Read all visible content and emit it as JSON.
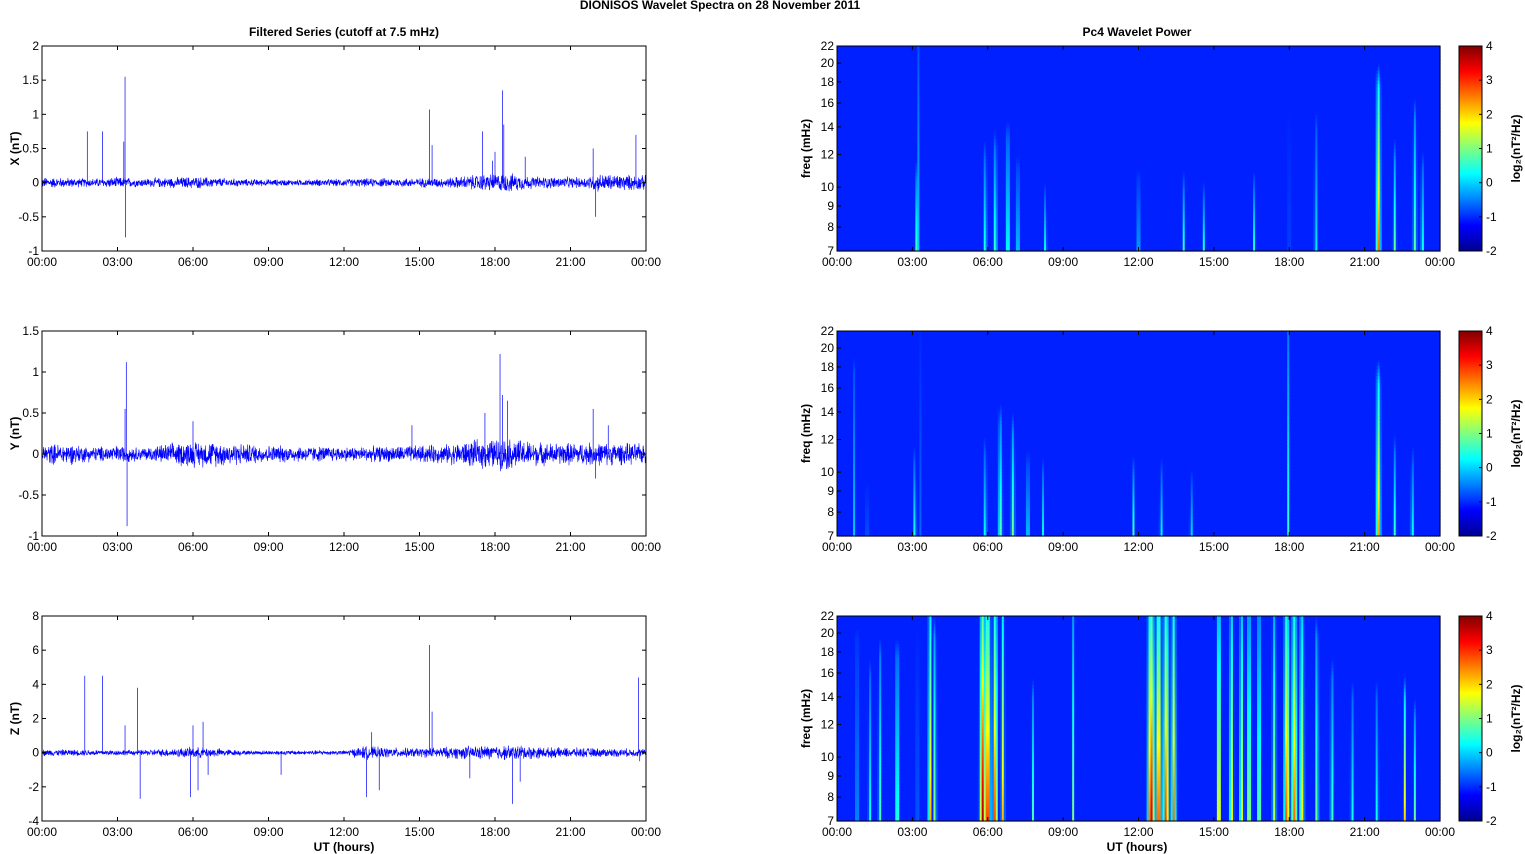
{
  "figure": {
    "title": "DIONISOS Wavelet Spectra on 28 November  2011",
    "left_title": "Filtered Series (cutoff at 7.5 mHz)",
    "right_title": "Pc4 Wavelet Power",
    "xlabel": "UT (hours)"
  },
  "colors": {
    "trace": "#0000ff",
    "axis": "#000000",
    "background": "#ffffff"
  },
  "chart_data": [
    {
      "type": "line",
      "ylabel": "X (nT)",
      "ylim": [
        -1,
        2
      ],
      "yticks": [
        "-1",
        "-0.5",
        "0",
        "0.5",
        "1",
        "1.5",
        "2"
      ],
      "xticks": [
        "00:00",
        "03:00",
        "06:00",
        "09:00",
        "12:00",
        "15:00",
        "18:00",
        "21:00",
        "00:00"
      ],
      "xlim_hours": [
        0,
        24
      ],
      "noise": [
        [
          0,
          0.09
        ],
        [
          2,
          0.07
        ],
        [
          3,
          0.09
        ],
        [
          4,
          0.07
        ],
        [
          6,
          0.1
        ],
        [
          8,
          0.06
        ],
        [
          10,
          0.05
        ],
        [
          13,
          0.07
        ],
        [
          16,
          0.08
        ],
        [
          17.5,
          0.14
        ],
        [
          18.5,
          0.16
        ],
        [
          19.5,
          0.1
        ],
        [
          21.5,
          0.09
        ],
        [
          22,
          0.15
        ],
        [
          24,
          0.12
        ]
      ],
      "spikes": [
        [
          1.8,
          0.75
        ],
        [
          2.4,
          0.75
        ],
        [
          3.3,
          1.55
        ],
        [
          3.32,
          -0.8
        ],
        [
          3.25,
          0.6
        ],
        [
          15.4,
          1.07
        ],
        [
          15.5,
          0.55
        ],
        [
          17.5,
          0.75
        ],
        [
          17.9,
          0.32
        ],
        [
          18.0,
          0.45
        ],
        [
          18.3,
          1.35
        ],
        [
          18.35,
          0.85
        ],
        [
          19.2,
          0.38
        ],
        [
          21.9,
          0.5
        ],
        [
          22.0,
          -0.5
        ],
        [
          23.6,
          0.7
        ]
      ]
    },
    {
      "type": "line",
      "ylabel": "Y (nT)",
      "ylim": [
        -1,
        1.5
      ],
      "yticks": [
        "-1",
        "-0.5",
        "0",
        "0.5",
        "1",
        "1.5"
      ],
      "xticks": [
        "00:00",
        "03:00",
        "06:00",
        "09:00",
        "12:00",
        "15:00",
        "18:00",
        "21:00",
        "00:00"
      ],
      "xlim_hours": [
        0,
        24
      ],
      "noise": [
        [
          0,
          0.13
        ],
        [
          1,
          0.15
        ],
        [
          2,
          0.1
        ],
        [
          3,
          0.12
        ],
        [
          4,
          0.09
        ],
        [
          5.8,
          0.18
        ],
        [
          7,
          0.17
        ],
        [
          9,
          0.12
        ],
        [
          12,
          0.1
        ],
        [
          14,
          0.11
        ],
        [
          16,
          0.13
        ],
        [
          17.5,
          0.2
        ],
        [
          18.5,
          0.22
        ],
        [
          20,
          0.15
        ],
        [
          22,
          0.16
        ],
        [
          24,
          0.14
        ]
      ],
      "spikes": [
        [
          3.35,
          1.12
        ],
        [
          3.38,
          -0.88
        ],
        [
          3.3,
          0.55
        ],
        [
          6.0,
          0.4
        ],
        [
          14.7,
          0.35
        ],
        [
          17.6,
          0.5
        ],
        [
          18.2,
          1.22
        ],
        [
          18.3,
          0.72
        ],
        [
          18.5,
          0.65
        ],
        [
          21.9,
          0.55
        ],
        [
          22.0,
          -0.3
        ],
        [
          22.5,
          0.35
        ]
      ]
    },
    {
      "type": "line",
      "ylabel": "Z (nT)",
      "ylim": [
        -4,
        8
      ],
      "yticks": [
        "-4",
        "-2",
        "0",
        "2",
        "4",
        "6",
        "8"
      ],
      "xticks": [
        "00:00",
        "03:00",
        "06:00",
        "09:00",
        "12:00",
        "15:00",
        "18:00",
        "21:00",
        "00:00"
      ],
      "xlim_hours": [
        0,
        24
      ],
      "noise": [
        [
          0,
          0.22
        ],
        [
          2,
          0.2
        ],
        [
          4,
          0.18
        ],
        [
          5.8,
          0.35
        ],
        [
          6.5,
          0.35
        ],
        [
          8,
          0.15
        ],
        [
          12,
          0.15
        ],
        [
          12.8,
          0.45
        ],
        [
          13.5,
          0.35
        ],
        [
          15,
          0.3
        ],
        [
          17,
          0.45
        ],
        [
          19,
          0.5
        ],
        [
          20,
          0.35
        ],
        [
          22,
          0.3
        ],
        [
          24,
          0.25
        ]
      ],
      "spikes": [
        [
          1.7,
          4.5
        ],
        [
          2.4,
          4.5
        ],
        [
          3.3,
          1.6
        ],
        [
          3.8,
          3.8
        ],
        [
          3.9,
          -2.7
        ],
        [
          5.9,
          -2.6
        ],
        [
          6.0,
          1.6
        ],
        [
          6.2,
          -2.2
        ],
        [
          6.4,
          1.8
        ],
        [
          6.6,
          -1.3
        ],
        [
          9.5,
          -1.3
        ],
        [
          12.9,
          -2.6
        ],
        [
          13.1,
          1.2
        ],
        [
          13.4,
          -2.2
        ],
        [
          15.4,
          6.3
        ],
        [
          15.5,
          2.4
        ],
        [
          17.0,
          -1.5
        ],
        [
          18.7,
          -3.0
        ],
        [
          19.0,
          -1.7
        ],
        [
          23.7,
          4.4
        ],
        [
          23.75,
          -0.5
        ]
      ]
    },
    {
      "type": "heatmap",
      "ylabel": "freq (mHz)",
      "ytick_values": [
        7,
        8,
        9,
        10,
        12,
        14,
        16,
        18,
        20,
        22
      ],
      "yticks": [
        "7",
        "8",
        "9",
        "10",
        "12",
        "14",
        "16",
        "18",
        "20",
        "22"
      ],
      "ylim_mhz": [
        7,
        22
      ],
      "xticks": [
        "00:00",
        "03:00",
        "06:00",
        "09:00",
        "12:00",
        "15:00",
        "18:00",
        "21:00",
        "00:00"
      ],
      "xlim_hours": [
        0,
        24
      ],
      "colorbar_label": "log₂(nT²/Hz)",
      "colorbar_ticks": [
        "-2",
        "-1",
        "0",
        "1",
        "2",
        "3",
        "4"
      ],
      "clim": [
        -2,
        4
      ],
      "events": [
        [
          3.25,
          -0.2,
          0.02,
          1.0
        ],
        [
          3.15,
          0.3,
          0.05,
          0.35
        ],
        [
          5.9,
          0.2,
          0.06,
          0.45
        ],
        [
          6.3,
          0.3,
          0.07,
          0.5
        ],
        [
          6.8,
          0.4,
          0.07,
          0.55
        ],
        [
          7.2,
          0.0,
          0.06,
          0.4
        ],
        [
          8.3,
          0.1,
          0.05,
          0.25
        ],
        [
          12.0,
          0.0,
          0.05,
          0.35
        ],
        [
          13.8,
          0.1,
          0.05,
          0.3
        ],
        [
          14.6,
          0.0,
          0.05,
          0.25
        ],
        [
          16.6,
          0.0,
          0.05,
          0.3
        ],
        [
          18.0,
          0.6,
          0.03,
          1.0
        ],
        [
          19.05,
          0.8,
          0.04,
          0.6
        ],
        [
          21.55,
          2.5,
          0.08,
          0.8
        ],
        [
          22.2,
          0.5,
          0.06,
          0.45
        ],
        [
          23.0,
          0.4,
          0.07,
          0.65
        ],
        [
          23.3,
          0.1,
          0.06,
          0.4
        ]
      ]
    },
    {
      "type": "heatmap",
      "ylabel": "freq (mHz)",
      "ytick_values": [
        7,
        8,
        9,
        10,
        12,
        14,
        16,
        18,
        20,
        22
      ],
      "yticks": [
        "7",
        "8",
        "9",
        "10",
        "12",
        "14",
        "16",
        "18",
        "20",
        "22"
      ],
      "ylim_mhz": [
        7,
        22
      ],
      "xticks": [
        "00:00",
        "03:00",
        "06:00",
        "09:00",
        "12:00",
        "15:00",
        "18:00",
        "21:00",
        "00:00"
      ],
      "xlim_hours": [
        0,
        24
      ],
      "colorbar_label": "log₂(nT²/Hz)",
      "colorbar_ticks": [
        "-2",
        "-1",
        "0",
        "1",
        "2",
        "3",
        "4"
      ],
      "clim": [
        -2,
        4
      ],
      "events": [
        [
          0.7,
          -0.2,
          0.04,
          0.8
        ],
        [
          1.2,
          -0.5,
          0.04,
          0.3
        ],
        [
          3.3,
          0.0,
          0.02,
          1.0
        ],
        [
          3.1,
          0.2,
          0.05,
          0.35
        ],
        [
          5.9,
          0.0,
          0.06,
          0.4
        ],
        [
          6.5,
          0.5,
          0.08,
          0.55
        ],
        [
          7.0,
          0.6,
          0.07,
          0.5
        ],
        [
          7.6,
          0.0,
          0.06,
          0.35
        ],
        [
          8.2,
          -0.2,
          0.05,
          0.3
        ],
        [
          11.8,
          0.2,
          0.05,
          0.3
        ],
        [
          12.9,
          0.0,
          0.05,
          0.3
        ],
        [
          14.1,
          -0.2,
          0.05,
          0.25
        ],
        [
          17.95,
          0.3,
          0.03,
          1.0
        ],
        [
          21.55,
          2.2,
          0.08,
          0.75
        ],
        [
          22.2,
          0.2,
          0.06,
          0.4
        ],
        [
          22.9,
          0.0,
          0.06,
          0.35
        ]
      ]
    },
    {
      "type": "heatmap",
      "ylabel": "freq (mHz)",
      "ytick_values": [
        7,
        8,
        9,
        10,
        12,
        14,
        16,
        18,
        20,
        22
      ],
      "yticks": [
        "7",
        "8",
        "9",
        "10",
        "12",
        "14",
        "16",
        "18",
        "20",
        "22"
      ],
      "ylim_mhz": [
        7,
        22
      ],
      "xticks": [
        "00:00",
        "03:00",
        "06:00",
        "09:00",
        "12:00",
        "15:00",
        "18:00",
        "21:00",
        "00:00"
      ],
      "xlim_hours": [
        0,
        24
      ],
      "colorbar_label": "log₂(nT²/Hz)",
      "colorbar_ticks": [
        "-2",
        "-1",
        "0",
        "1",
        "2",
        "3",
        "4"
      ],
      "clim": [
        -2,
        4
      ],
      "events": [
        [
          0.8,
          0.5,
          0.04,
          0.9
        ],
        [
          1.3,
          0.2,
          0.05,
          0.7
        ],
        [
          1.7,
          0.6,
          0.05,
          0.8
        ],
        [
          2.4,
          1.0,
          0.06,
          0.8
        ],
        [
          3.2,
          1.5,
          0.03,
          1.0
        ],
        [
          3.7,
          2.5,
          0.06,
          1.0
        ],
        [
          3.9,
          1.2,
          0.05,
          0.9
        ],
        [
          5.8,
          3.8,
          0.1,
          1.0
        ],
        [
          6.0,
          3.5,
          0.1,
          1.0
        ],
        [
          6.3,
          3.0,
          0.08,
          1.0
        ],
        [
          6.6,
          2.0,
          0.06,
          1.0
        ],
        [
          7.8,
          0.3,
          0.05,
          0.6
        ],
        [
          9.4,
          0.6,
          0.03,
          1.0
        ],
        [
          12.5,
          3.6,
          0.12,
          1.0
        ],
        [
          12.8,
          3.2,
          0.1,
          1.0
        ],
        [
          13.1,
          3.0,
          0.1,
          1.0
        ],
        [
          13.4,
          2.5,
          0.08,
          1.0
        ],
        [
          15.2,
          3.0,
          0.06,
          1.0
        ],
        [
          15.7,
          1.8,
          0.07,
          1.0
        ],
        [
          16.1,
          1.6,
          0.07,
          1.0
        ],
        [
          16.4,
          1.3,
          0.08,
          1.0
        ],
        [
          16.8,
          1.2,
          0.07,
          1.0
        ],
        [
          17.4,
          1.0,
          0.07,
          1.0
        ],
        [
          17.9,
          2.8,
          0.1,
          1.0
        ],
        [
          18.2,
          2.5,
          0.1,
          1.0
        ],
        [
          18.5,
          1.8,
          0.08,
          1.0
        ],
        [
          19.1,
          0.8,
          0.06,
          0.9
        ],
        [
          19.7,
          0.4,
          0.06,
          0.7
        ],
        [
          20.5,
          0.2,
          0.05,
          0.6
        ],
        [
          21.5,
          0.2,
          0.05,
          0.6
        ],
        [
          22.6,
          1.8,
          0.05,
          0.6
        ],
        [
          23.0,
          0.5,
          0.05,
          0.5
        ]
      ]
    }
  ]
}
